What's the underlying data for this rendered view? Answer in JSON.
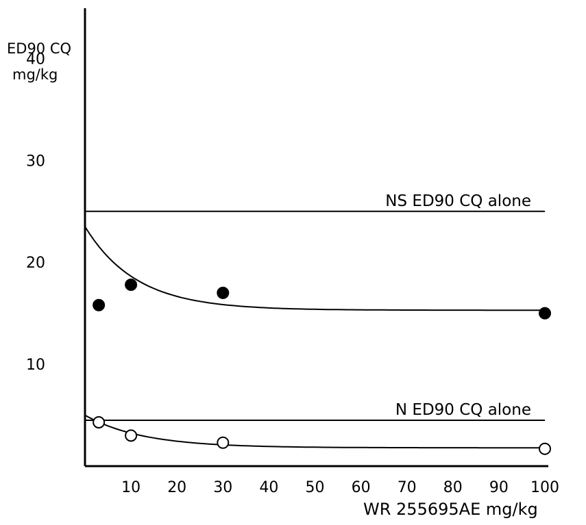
{
  "chart_data": {
    "type": "scatter",
    "title": "",
    "ylabel_line1": "ED90 CQ",
    "ylabel_line2": "mg/kg",
    "xlabel": "WR 255695AE mg/kg",
    "xlim": [
      0,
      100
    ],
    "ylim": [
      0,
      45
    ],
    "xticks": [
      10,
      20,
      30,
      40,
      50,
      60,
      70,
      80,
      90,
      100
    ],
    "yticks": [
      10,
      20,
      30,
      40
    ],
    "grid": false,
    "reference_lines": [
      {
        "label": "NS ED90 CQ alone",
        "y": 25
      },
      {
        "label": "N ED90 CQ alone",
        "y": 4.5
      }
    ],
    "series": [
      {
        "style": "filled",
        "points": [
          [
            3,
            15.8
          ],
          [
            10,
            17.8
          ],
          [
            30,
            17.0
          ],
          [
            100,
            15.0
          ]
        ],
        "fit": {
          "start": 23.5,
          "plateau": 15.3,
          "rate": 0.09
        }
      },
      {
        "style": "open",
        "points": [
          [
            3,
            4.3
          ],
          [
            10,
            3.0
          ],
          [
            30,
            2.3
          ],
          [
            100,
            1.7
          ]
        ],
        "fit": {
          "start": 5.0,
          "plateau": 1.8,
          "rate": 0.08
        }
      }
    ]
  }
}
